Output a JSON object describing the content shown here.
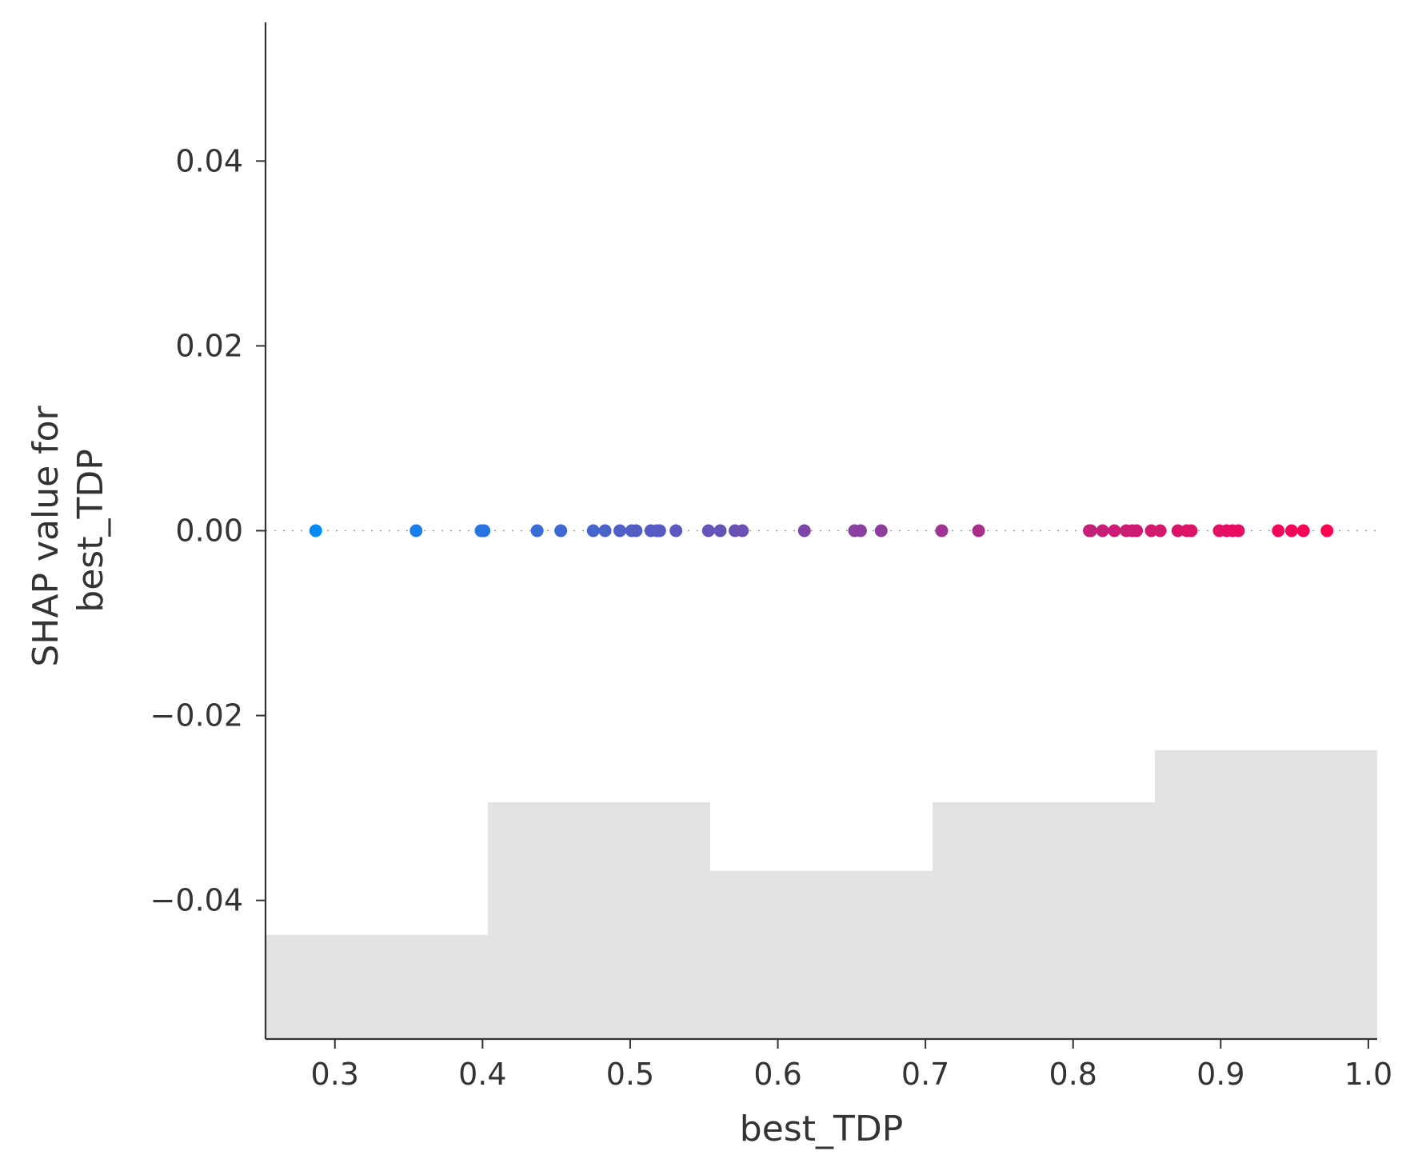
{
  "chart_data": {
    "type": "scatter",
    "xlabel": "best_TDP",
    "ylabel_lines": [
      "SHAP value for",
      "best_TDP"
    ],
    "xlim": [
      0.253,
      1.006
    ],
    "ylim": [
      -0.055,
      0.055
    ],
    "x_ticks": [
      0.3,
      0.4,
      0.5,
      0.6,
      0.7,
      0.8,
      0.9,
      1.0
    ],
    "x_tick_labels": [
      "0.3",
      "0.4",
      "0.5",
      "0.6",
      "0.7",
      "0.8",
      "0.9",
      "1.0"
    ],
    "y_ticks": [
      -0.04,
      -0.02,
      0.0,
      0.02,
      0.04
    ],
    "y_tick_labels": [
      "−0.04",
      "−0.02",
      "0.00",
      "0.02",
      "0.04"
    ],
    "grid": false,
    "zero_line": "dotted",
    "color_low": "#008bfb",
    "color_high": "#ff0052",
    "histogram_color": "#e3e3e3",
    "histogram": {
      "bin_edges": [
        0.253,
        0.4036,
        0.5542,
        0.7048,
        0.8554,
        1.006
      ],
      "relative_heights": [
        0.44,
        1.0,
        0.71,
        1.0,
        1.22
      ]
    },
    "points": {
      "x": [
        0.287,
        0.355,
        0.399,
        0.401,
        0.437,
        0.453,
        0.475,
        0.483,
        0.493,
        0.501,
        0.504,
        0.514,
        0.518,
        0.52,
        0.531,
        0.553,
        0.561,
        0.571,
        0.576,
        0.618,
        0.652,
        0.656,
        0.67,
        0.711,
        0.736,
        0.811,
        0.812,
        0.82,
        0.828,
        0.836,
        0.84,
        0.843,
        0.853,
        0.859,
        0.871,
        0.877,
        0.88,
        0.899,
        0.904,
        0.908,
        0.912,
        0.939,
        0.948,
        0.956,
        0.972
      ],
      "y": [
        0,
        0,
        0,
        0,
        0,
        0,
        0,
        0,
        0,
        0,
        0,
        0,
        0,
        0,
        0,
        0,
        0,
        0,
        0,
        0,
        0,
        0,
        0,
        0,
        0,
        0,
        0,
        0,
        0,
        0,
        0,
        0,
        0,
        0,
        0,
        0,
        0,
        0,
        0,
        0,
        0,
        0,
        0,
        0,
        0
      ]
    }
  }
}
